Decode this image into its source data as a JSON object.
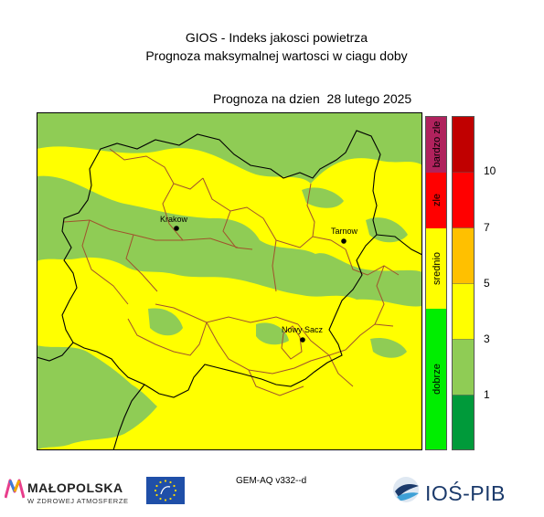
{
  "header": {
    "title_line1": "GIOS - Indeks jakosci powietrza",
    "title_line2": "Prognoza maksymalnej wartosci w ciagu doby",
    "forecast_date": "Prognoza na dzien  28 lutego 2025"
  },
  "cities": [
    {
      "name": "Krakow"
    },
    {
      "name": "Tarnow"
    },
    {
      "name": "Nowy Sacz"
    }
  ],
  "categories": [
    {
      "label": "bardzo zle",
      "color": "#b0225d"
    },
    {
      "label": "zle",
      "color": "#ff0000"
    },
    {
      "label": "srednio",
      "color": "#ffff00"
    },
    {
      "label": "dobrze",
      "color": "#00ee00"
    }
  ],
  "scale": {
    "colors": [
      "#009a3a",
      "#8fcc55",
      "#ffff00",
      "#ffc000",
      "#ff0000",
      "#c00000"
    ],
    "ticks": [
      "1",
      "3",
      "5",
      "7",
      "10"
    ]
  },
  "footer": {
    "model": "GEM-AQ v332--d",
    "malopolska_name": "MAŁOPOLSKA",
    "malopolska_sub": "W ZDROWEJ ATMOSFERZE",
    "ios_name": "IOŚ-PIB"
  },
  "colors": {
    "good": "#8fcc55",
    "moderate": "#ffff00"
  }
}
